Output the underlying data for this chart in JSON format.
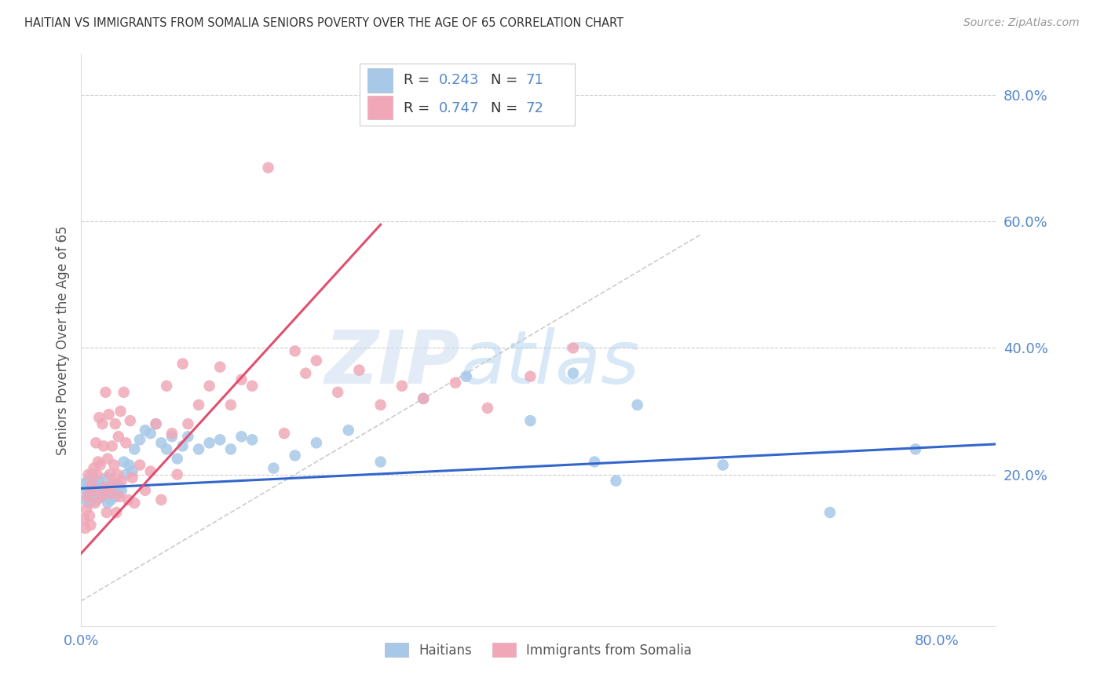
{
  "title": "HAITIAN VS IMMIGRANTS FROM SOMALIA SENIORS POVERTY OVER THE AGE OF 65 CORRELATION CHART",
  "source": "Source: ZipAtlas.com",
  "ylabel": "Seniors Poverty Over the Age of 65",
  "ytick_labels": [
    "80.0%",
    "60.0%",
    "40.0%",
    "20.0%"
  ],
  "ytick_values": [
    0.8,
    0.6,
    0.4,
    0.2
  ],
  "xtick_labels": [
    "0.0%",
    "80.0%"
  ],
  "xtick_values": [
    0.0,
    0.8
  ],
  "xlim": [
    0.0,
    0.855
  ],
  "ylim": [
    -0.04,
    0.865
  ],
  "watermark_zip": "ZIP",
  "watermark_atlas": "atlas",
  "haitian_color": "#a8c8e8",
  "somalia_color": "#f0a8b8",
  "haitian_line_color": "#3366cc",
  "somalia_line_color": "#e05070",
  "axis_color": "#5588cc",
  "grid_color": "#cccccc",
  "haitian_scatter_x": [
    0.003,
    0.004,
    0.005,
    0.006,
    0.007,
    0.008,
    0.009,
    0.01,
    0.011,
    0.012,
    0.013,
    0.014,
    0.015,
    0.016,
    0.017,
    0.018,
    0.019,
    0.02,
    0.021,
    0.022,
    0.023,
    0.024,
    0.025,
    0.026,
    0.027,
    0.028,
    0.029,
    0.03,
    0.031,
    0.032,
    0.033,
    0.034,
    0.035,
    0.036,
    0.038,
    0.04,
    0.042,
    0.045,
    0.048,
    0.05,
    0.055,
    0.06,
    0.065,
    0.07,
    0.075,
    0.08,
    0.085,
    0.09,
    0.095,
    0.1,
    0.11,
    0.12,
    0.13,
    0.14,
    0.15,
    0.16,
    0.18,
    0.2,
    0.22,
    0.25,
    0.28,
    0.32,
    0.36,
    0.42,
    0.46,
    0.48,
    0.5,
    0.52,
    0.6,
    0.7,
    0.78
  ],
  "haitian_scatter_y": [
    0.185,
    0.16,
    0.175,
    0.19,
    0.17,
    0.155,
    0.18,
    0.2,
    0.17,
    0.165,
    0.175,
    0.185,
    0.16,
    0.175,
    0.19,
    0.165,
    0.17,
    0.175,
    0.18,
    0.165,
    0.175,
    0.195,
    0.155,
    0.17,
    0.18,
    0.16,
    0.175,
    0.185,
    0.17,
    0.165,
    0.175,
    0.185,
    0.17,
    0.18,
    0.175,
    0.22,
    0.2,
    0.215,
    0.205,
    0.24,
    0.255,
    0.27,
    0.265,
    0.28,
    0.25,
    0.24,
    0.26,
    0.225,
    0.245,
    0.26,
    0.24,
    0.25,
    0.255,
    0.24,
    0.26,
    0.255,
    0.21,
    0.23,
    0.25,
    0.27,
    0.22,
    0.32,
    0.355,
    0.285,
    0.36,
    0.22,
    0.19,
    0.31,
    0.215,
    0.14,
    0.24
  ],
  "somalia_scatter_x": [
    0.003,
    0.004,
    0.005,
    0.006,
    0.007,
    0.008,
    0.009,
    0.01,
    0.011,
    0.012,
    0.013,
    0.014,
    0.015,
    0.016,
    0.017,
    0.018,
    0.019,
    0.02,
    0.021,
    0.022,
    0.023,
    0.024,
    0.025,
    0.026,
    0.027,
    0.028,
    0.029,
    0.03,
    0.031,
    0.032,
    0.033,
    0.034,
    0.035,
    0.036,
    0.037,
    0.038,
    0.04,
    0.042,
    0.044,
    0.046,
    0.048,
    0.05,
    0.055,
    0.06,
    0.065,
    0.07,
    0.075,
    0.08,
    0.085,
    0.09,
    0.095,
    0.1,
    0.11,
    0.12,
    0.13,
    0.14,
    0.15,
    0.16,
    0.175,
    0.19,
    0.2,
    0.21,
    0.22,
    0.24,
    0.26,
    0.28,
    0.3,
    0.32,
    0.35,
    0.38,
    0.42,
    0.46
  ],
  "somalia_scatter_y": [
    0.13,
    0.115,
    0.145,
    0.165,
    0.2,
    0.135,
    0.12,
    0.185,
    0.175,
    0.21,
    0.155,
    0.25,
    0.2,
    0.22,
    0.29,
    0.215,
    0.165,
    0.28,
    0.245,
    0.18,
    0.33,
    0.14,
    0.225,
    0.295,
    0.2,
    0.17,
    0.245,
    0.185,
    0.215,
    0.28,
    0.14,
    0.2,
    0.26,
    0.165,
    0.3,
    0.19,
    0.33,
    0.25,
    0.16,
    0.285,
    0.195,
    0.155,
    0.215,
    0.175,
    0.205,
    0.28,
    0.16,
    0.34,
    0.265,
    0.2,
    0.375,
    0.28,
    0.31,
    0.34,
    0.37,
    0.31,
    0.35,
    0.34,
    0.685,
    0.265,
    0.395,
    0.36,
    0.38,
    0.33,
    0.365,
    0.31,
    0.34,
    0.32,
    0.345,
    0.305,
    0.355,
    0.4
  ],
  "haitian_line_x": [
    0.0,
    0.855
  ],
  "haitian_line_y": [
    0.178,
    0.248
  ],
  "somalia_line_x": [
    0.0,
    0.28
  ],
  "somalia_line_y": [
    0.075,
    0.595
  ],
  "diagonal_line_x": [
    0.0,
    0.58
  ],
  "diagonal_line_y": [
    0.0,
    0.58
  ]
}
